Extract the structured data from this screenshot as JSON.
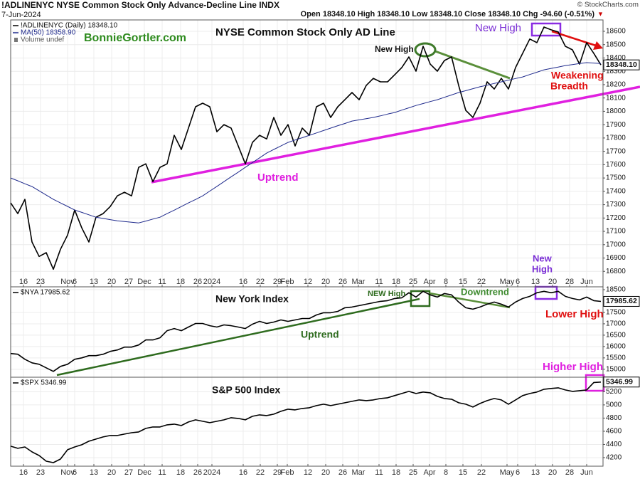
{
  "header": {
    "symbol_line": "!ADLINENYC NYSE Common Stock Only Advance-Decline Line INDX",
    "date": "7-Jun-2024",
    "quote": "Open 18348.10 High 18348.10 Low 18348.10 Close 18348.10 Chg -94.60 (-0.51%)",
    "direction": "▼",
    "copyright": "© StockCharts.com"
  },
  "chart_data": [
    {
      "type": "line",
      "annotations": [
        "NYSE Common Stock Only AD Line",
        "BonnieGortler.com",
        "New High",
        "New High",
        "Weakening",
        "Breadth",
        "Uptrend",
        "New",
        "High"
      ],
      "legend_extra": "Volume undef",
      "value_tag": "18348.10",
      "xlim": [
        0,
        83
      ],
      "ylim": [
        16700,
        18760
      ],
      "grid": true,
      "yticks": [
        16800,
        16900,
        17000,
        17100,
        17200,
        17300,
        17400,
        17500,
        17600,
        17700,
        17800,
        17900,
        18000,
        18100,
        18200,
        18300,
        18400,
        18500,
        18600
      ],
      "xticks": [
        {
          "value": 1.8,
          "label": "16"
        },
        {
          "value": 4.2,
          "label": "23"
        },
        {
          "value": 8,
          "label": "Nov"
        },
        {
          "value": 9,
          "label": "6"
        },
        {
          "value": 11.7,
          "label": "13"
        },
        {
          "value": 14.2,
          "label": "20"
        },
        {
          "value": 16.6,
          "label": "27"
        },
        {
          "value": 18.8,
          "label": "Dec"
        },
        {
          "value": 21.3,
          "label": "11"
        },
        {
          "value": 23.9,
          "label": "18"
        },
        {
          "value": 26.3,
          "label": "26"
        },
        {
          "value": 28.3,
          "label": "2024"
        },
        {
          "value": 32.7,
          "label": "16"
        },
        {
          "value": 35.1,
          "label": "22"
        },
        {
          "value": 37.5,
          "label": "29"
        },
        {
          "value": 38.9,
          "label": "Feb"
        },
        {
          "value": 41.8,
          "label": "12"
        },
        {
          "value": 44.3,
          "label": "20"
        },
        {
          "value": 46.7,
          "label": "26"
        },
        {
          "value": 48.9,
          "label": "Mar"
        },
        {
          "value": 51.8,
          "label": "11"
        },
        {
          "value": 54.2,
          "label": "18"
        },
        {
          "value": 56.6,
          "label": "25"
        },
        {
          "value": 58.9,
          "label": "Apr"
        },
        {
          "value": 61.2,
          "label": "8"
        },
        {
          "value": 63.6,
          "label": "15"
        },
        {
          "value": 66.2,
          "label": "22"
        },
        {
          "value": 69.8,
          "label": "May"
        },
        {
          "value": 71.3,
          "label": "6"
        },
        {
          "value": 73.8,
          "label": "13"
        },
        {
          "value": 76.2,
          "label": "20"
        },
        {
          "value": 78.6,
          "label": "28"
        },
        {
          "value": 81,
          "label": "Jun"
        }
      ],
      "series": [
        {
          "name": "!ADLINENYC (Daily) 18348.10",
          "color": "#000000",
          "values": [
            17313,
            17233,
            17340,
            17020,
            16912,
            16940,
            16816,
            16965,
            17072,
            17260,
            17126,
            17020,
            17206,
            17233,
            17286,
            17366,
            17393,
            17366,
            17580,
            17606,
            17473,
            17580,
            17606,
            17820,
            17714,
            17874,
            18034,
            18061,
            18034,
            17847,
            17900,
            17874,
            17740,
            17606,
            17767,
            17820,
            17793,
            17954,
            17820,
            17900,
            17740,
            17874,
            17820,
            18034,
            18061,
            17954,
            18034,
            18087,
            18141,
            18087,
            18194,
            18247,
            18221,
            18221,
            18274,
            18328,
            18408,
            18301,
            18488,
            18354,
            18301,
            18381,
            18408,
            18194,
            18007,
            17954,
            18061,
            18221,
            18167,
            18247,
            18167,
            18328,
            18435,
            18542,
            18515,
            18632,
            18611,
            18595,
            18488,
            18461,
            18354,
            18515,
            18435,
            18348.1
          ]
        },
        {
          "name": "MA(50) 18358.90",
          "color": "#1f2a8c",
          "values": [
            17500,
            17479,
            17457,
            17436,
            17404,
            17372,
            17340,
            17313,
            17287,
            17260,
            17242,
            17224,
            17206,
            17197,
            17188,
            17179,
            17174,
            17168,
            17163,
            17177,
            17192,
            17206,
            17233,
            17259,
            17286,
            17313,
            17339,
            17366,
            17402,
            17437,
            17473,
            17509,
            17544,
            17580,
            17616,
            17651,
            17687,
            17714,
            17740,
            17767,
            17785,
            17802,
            17820,
            17838,
            17856,
            17874,
            17892,
            17909,
            17927,
            17936,
            17945,
            17954,
            17966,
            17979,
            17991,
            18009,
            18026,
            18044,
            18058,
            18073,
            18087,
            18105,
            18123,
            18141,
            18155,
            18170,
            18184,
            18196,
            18209,
            18221,
            18233,
            18246,
            18258,
            18276,
            18293,
            18311,
            18322,
            18332,
            18343,
            18350,
            18358,
            18365,
            18362,
            18358.9
          ]
        }
      ]
    },
    {
      "type": "line",
      "annotations": [
        "New York Index",
        "NEW High",
        "Downtrend",
        "Uptrend",
        "Lower High"
      ],
      "value_tag": "17985.62",
      "xlim": [
        0,
        83
      ],
      "ylim": [
        14650,
        18720
      ],
      "grid": true,
      "yticks": [
        15000,
        15500,
        16000,
        16500,
        17000,
        17500,
        18500
      ],
      "series": [
        {
          "name": "$NYA 17985.62",
          "color": "#000000",
          "values": [
            15692,
            15660,
            15440,
            15283,
            15220,
            15063,
            14906,
            15126,
            15220,
            15440,
            15503,
            15598,
            15598,
            15660,
            15786,
            15849,
            15975,
            15975,
            16069,
            16289,
            16289,
            16384,
            16698,
            16793,
            16698,
            16856,
            17013,
            17013,
            16918,
            16856,
            16950,
            16918,
            16856,
            16793,
            16981,
            17107,
            17013,
            17076,
            17170,
            17107,
            17170,
            17233,
            17233,
            17390,
            17485,
            17485,
            17547,
            17705,
            17736,
            17799,
            17862,
            17925,
            17988,
            18019,
            18114,
            18145,
            18365,
            18176,
            18428,
            18271,
            18176,
            18333,
            18271,
            17956,
            17705,
            17642,
            17736,
            17862,
            17956,
            17862,
            17736,
            17956,
            18114,
            18208,
            18365,
            18428,
            18365,
            18428,
            18208,
            18114,
            18051,
            18176,
            18019,
            17985.62
          ]
        }
      ]
    },
    {
      "type": "line",
      "annotations": [
        "S&P 500 Index",
        "Higher High"
      ],
      "value_tag": "5346.99",
      "xlim": [
        0,
        83
      ],
      "ylim": [
        4070,
        5420
      ],
      "grid": true,
      "yticks": [
        4200,
        4400,
        4600,
        4800,
        5000,
        5200
      ],
      "xticks": [
        {
          "value": 1.8,
          "label": "16"
        },
        {
          "value": 4.2,
          "label": "23"
        },
        {
          "value": 8,
          "label": "Nov"
        },
        {
          "value": 9,
          "label": "6"
        },
        {
          "value": 11.7,
          "label": "13"
        },
        {
          "value": 14.2,
          "label": "20"
        },
        {
          "value": 16.6,
          "label": "27"
        },
        {
          "value": 18.8,
          "label": "Dec"
        },
        {
          "value": 21.3,
          "label": "11"
        },
        {
          "value": 23.9,
          "label": "18"
        },
        {
          "value": 26.3,
          "label": "26"
        },
        {
          "value": 28.3,
          "label": "2024"
        },
        {
          "value": 32.7,
          "label": "16"
        },
        {
          "value": 35.1,
          "label": "22"
        },
        {
          "value": 37.5,
          "label": "29"
        },
        {
          "value": 38.9,
          "label": "Feb"
        },
        {
          "value": 41.8,
          "label": "12"
        },
        {
          "value": 44.3,
          "label": "20"
        },
        {
          "value": 46.7,
          "label": "26"
        },
        {
          "value": 48.9,
          "label": "Mar"
        },
        {
          "value": 51.8,
          "label": "11"
        },
        {
          "value": 54.2,
          "label": "18"
        },
        {
          "value": 56.6,
          "label": "25"
        },
        {
          "value": 58.9,
          "label": "Apr"
        },
        {
          "value": 61.2,
          "label": "8"
        },
        {
          "value": 63.6,
          "label": "15"
        },
        {
          "value": 66.2,
          "label": "22"
        },
        {
          "value": 69.8,
          "label": "May"
        },
        {
          "value": 71.3,
          "label": "6"
        },
        {
          "value": 73.8,
          "label": "13"
        },
        {
          "value": 76.2,
          "label": "20"
        },
        {
          "value": 78.6,
          "label": "28"
        },
        {
          "value": 81,
          "label": "Jun"
        }
      ],
      "series": [
        {
          "name": "$SPX 5346.99",
          "color": "#000000",
          "values": [
            4373,
            4341,
            4362,
            4287,
            4232,
            4146,
            4124,
            4178,
            4319,
            4362,
            4395,
            4449,
            4481,
            4514,
            4535,
            4535,
            4557,
            4578,
            4589,
            4643,
            4665,
            4665,
            4697,
            4708,
            4687,
            4741,
            4773,
            4751,
            4730,
            4751,
            4773,
            4805,
            4795,
            4773,
            4827,
            4849,
            4838,
            4859,
            4903,
            4935,
            4924,
            4946,
            4957,
            4989,
            5011,
            4989,
            5011,
            5032,
            5054,
            5076,
            5065,
            5076,
            5097,
            5108,
            5141,
            5173,
            5205,
            5173,
            5195,
            5184,
            5130,
            5097,
            5086,
            5032,
            5011,
            4968,
            5022,
            5065,
            5097,
            5076,
            5011,
            5076,
            5141,
            5173,
            5195,
            5238,
            5249,
            5259,
            5227,
            5205,
            5216,
            5227,
            5340,
            5346.99
          ]
        }
      ]
    }
  ]
}
